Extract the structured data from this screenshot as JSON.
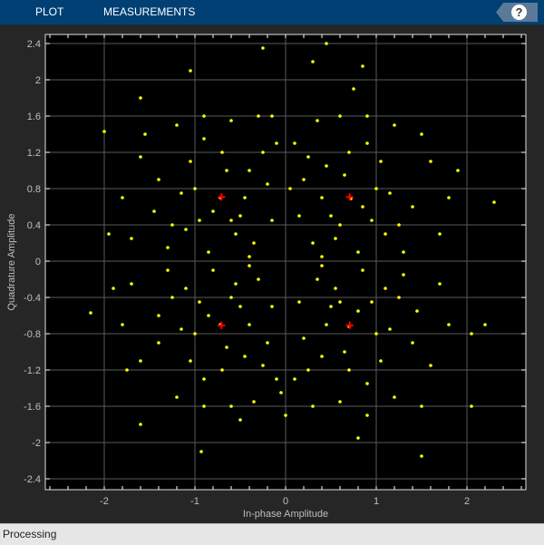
{
  "toolstrip": {
    "tabs": [
      {
        "label": "PLOT"
      },
      {
        "label": "MEASUREMENTS"
      }
    ],
    "help_label": "?"
  },
  "status": {
    "text": "Processing"
  },
  "chart_data": {
    "type": "scatter",
    "xlabel": "In-phase Amplitude",
    "ylabel": "Quadrature Amplitude",
    "xlim": [
      -2.65,
      2.65
    ],
    "ylim": [
      -2.52,
      2.5
    ],
    "xticks": [
      -2,
      -1,
      0,
      1,
      2
    ],
    "yticks": [
      2.4,
      2,
      1.6,
      1.2,
      0.8,
      0.4,
      0,
      -0.4,
      -0.8,
      -1.2,
      -1.6,
      -2,
      -2.4
    ],
    "grid": true,
    "colors": {
      "points": "#ffff00",
      "reference": "#ff0000",
      "background": "#000000",
      "grid": "#5a5a5a"
    },
    "reference_points": [
      [
        0.707,
        0.707
      ],
      [
        -0.707,
        0.707
      ],
      [
        0.707,
        -0.707
      ],
      [
        -0.707,
        -0.707
      ]
    ],
    "points": [
      [
        0.72,
        0.69
      ],
      [
        0.45,
        1.05
      ],
      [
        1.1,
        0.3
      ],
      [
        0.2,
        0.9
      ],
      [
        0.9,
        1.3
      ],
      [
        1.4,
        0.6
      ],
      [
        0.3,
        0.2
      ],
      [
        0.6,
        1.6
      ],
      [
        1.0,
        0.8
      ],
      [
        0.5,
        0.5
      ],
      [
        0.8,
        0.1
      ],
      [
        1.6,
        1.1
      ],
      [
        0.1,
        1.3
      ],
      [
        1.2,
        1.5
      ],
      [
        0.4,
        0.7
      ],
      [
        0.95,
        0.45
      ],
      [
        0.65,
        0.95
      ],
      [
        1.3,
        0.1
      ],
      [
        0.15,
        0.5
      ],
      [
        0.75,
        1.9
      ],
      [
        1.8,
        0.7
      ],
      [
        0.35,
        1.55
      ],
      [
        1.05,
        1.1
      ],
      [
        0.55,
        0.25
      ],
      [
        0.85,
        0.6
      ],
      [
        1.5,
        1.4
      ],
      [
        0.25,
        1.15
      ],
      [
        1.15,
        0.75
      ],
      [
        0.6,
        0.4
      ],
      [
        0.3,
        2.2
      ],
      [
        0.45,
        2.4
      ],
      [
        0.85,
        2.15
      ],
      [
        2.3,
        0.65
      ],
      [
        1.9,
        1.0
      ],
      [
        0.05,
        0.8
      ],
      [
        0.7,
        1.2
      ],
      [
        1.25,
        0.4
      ],
      [
        0.4,
        0.05
      ],
      [
        0.9,
        1.6
      ],
      [
        1.7,
        0.3
      ],
      [
        -0.72,
        0.7
      ],
      [
        -0.4,
        1.0
      ],
      [
        -1.1,
        0.35
      ],
      [
        -0.2,
        0.85
      ],
      [
        -0.9,
        1.35
      ],
      [
        -1.45,
        0.55
      ],
      [
        -0.35,
        0.2
      ],
      [
        -0.6,
        1.55
      ],
      [
        -1.0,
        0.8
      ],
      [
        -0.5,
        0.5
      ],
      [
        -0.85,
        0.1
      ],
      [
        -1.6,
        1.15
      ],
      [
        -0.1,
        1.3
      ],
      [
        -1.2,
        1.5
      ],
      [
        -0.45,
        0.7
      ],
      [
        -0.95,
        0.45
      ],
      [
        -0.65,
        1.0
      ],
      [
        -1.3,
        0.15
      ],
      [
        -0.15,
        0.45
      ],
      [
        -1.05,
        2.1
      ],
      [
        -1.8,
        0.7
      ],
      [
        -0.3,
        1.6
      ],
      [
        -1.05,
        1.1
      ],
      [
        -0.55,
        0.3
      ],
      [
        -0.8,
        0.55
      ],
      [
        -1.55,
        1.4
      ],
      [
        -0.25,
        1.2
      ],
      [
        -1.15,
        0.75
      ],
      [
        -0.6,
        0.45
      ],
      [
        -0.25,
        2.35
      ],
      [
        -1.95,
        0.3
      ],
      [
        -2.0,
        1.43
      ],
      [
        -1.6,
        1.8
      ],
      [
        -0.7,
        1.2
      ],
      [
        -1.25,
        0.4
      ],
      [
        -0.4,
        0.05
      ],
      [
        -0.9,
        1.6
      ],
      [
        -1.7,
        0.25
      ],
      [
        -0.15,
        1.6
      ],
      [
        -1.4,
        0.9
      ],
      [
        0.7,
        -0.72
      ],
      [
        0.4,
        -1.05
      ],
      [
        1.1,
        -0.3
      ],
      [
        0.2,
        -0.85
      ],
      [
        0.9,
        -1.35
      ],
      [
        1.45,
        -0.55
      ],
      [
        0.35,
        -0.2
      ],
      [
        0.6,
        -1.55
      ],
      [
        1.0,
        -0.8
      ],
      [
        0.5,
        -0.5
      ],
      [
        0.85,
        -0.1
      ],
      [
        1.6,
        -1.15
      ],
      [
        0.1,
        -1.3
      ],
      [
        1.2,
        -1.5
      ],
      [
        0.45,
        -0.7
      ],
      [
        0.95,
        -0.45
      ],
      [
        0.65,
        -1.0
      ],
      [
        1.3,
        -0.15
      ],
      [
        0.15,
        -0.45
      ],
      [
        0.8,
        -1.95
      ],
      [
        1.8,
        -0.7
      ],
      [
        0.3,
        -1.6
      ],
      [
        1.05,
        -1.1
      ],
      [
        0.55,
        -0.3
      ],
      [
        0.8,
        -0.55
      ],
      [
        1.5,
        -1.6
      ],
      [
        0.25,
        -1.2
      ],
      [
        1.15,
        -0.75
      ],
      [
        0.6,
        -0.45
      ],
      [
        1.5,
        -2.15
      ],
      [
        2.2,
        -0.7
      ],
      [
        2.05,
        -0.8
      ],
      [
        2.05,
        -1.6
      ],
      [
        0.7,
        -1.2
      ],
      [
        1.25,
        -0.4
      ],
      [
        0.4,
        -0.05
      ],
      [
        0.9,
        -1.7
      ],
      [
        1.7,
        -0.25
      ],
      [
        0.0,
        -1.7
      ],
      [
        1.4,
        -0.9
      ],
      [
        -0.72,
        -0.7
      ],
      [
        -0.45,
        -1.05
      ],
      [
        -1.1,
        -0.3
      ],
      [
        -0.2,
        -0.9
      ],
      [
        -0.9,
        -1.3
      ],
      [
        -1.4,
        -0.6
      ],
      [
        -0.3,
        -0.2
      ],
      [
        -0.6,
        -1.6
      ],
      [
        -1.0,
        -0.8
      ],
      [
        -0.5,
        -0.5
      ],
      [
        -0.8,
        -0.1
      ],
      [
        -1.6,
        -1.1
      ],
      [
        -0.1,
        -1.3
      ],
      [
        -1.2,
        -1.5
      ],
      [
        -0.4,
        -0.7
      ],
      [
        -0.95,
        -0.45
      ],
      [
        -0.65,
        -0.95
      ],
      [
        -1.3,
        -0.1
      ],
      [
        -0.15,
        -0.5
      ],
      [
        -0.93,
        -2.1
      ],
      [
        -1.8,
        -0.7
      ],
      [
        -0.35,
        -1.55
      ],
      [
        -1.05,
        -1.1
      ],
      [
        -0.55,
        -0.25
      ],
      [
        -0.85,
        -0.6
      ],
      [
        -1.6,
        -1.8
      ],
      [
        -0.25,
        -1.15
      ],
      [
        -1.15,
        -0.75
      ],
      [
        -0.6,
        -0.4
      ],
      [
        -2.15,
        -0.57
      ],
      [
        -1.9,
        -0.3
      ],
      [
        -1.75,
        -1.2
      ],
      [
        -0.5,
        -1.75
      ],
      [
        -0.7,
        -1.2
      ],
      [
        -1.25,
        -0.4
      ],
      [
        -0.4,
        -0.05
      ],
      [
        -0.9,
        -1.6
      ],
      [
        -1.7,
        -0.25
      ],
      [
        -0.05,
        -1.45
      ],
      [
        -1.4,
        -0.9
      ]
    ]
  }
}
